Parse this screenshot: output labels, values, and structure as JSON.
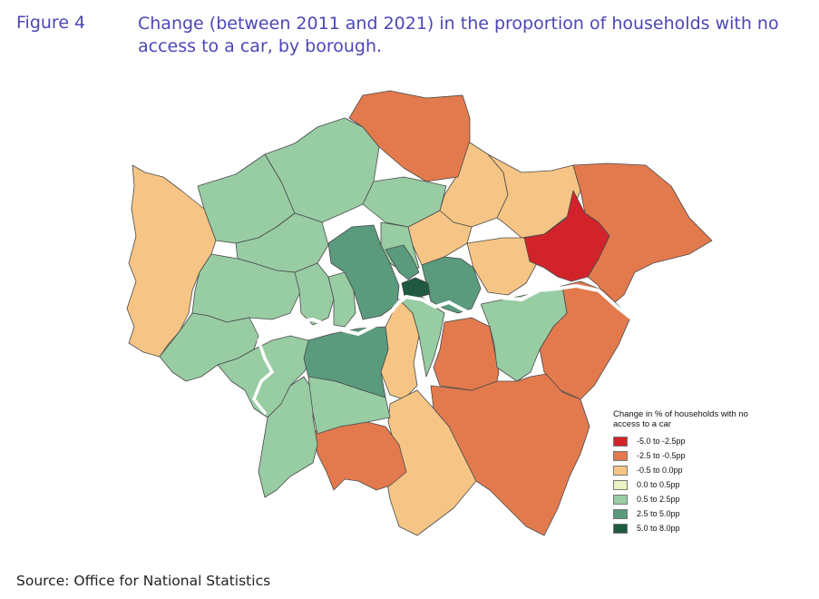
{
  "figure": {
    "label": "Figure 4",
    "title": "Change (between 2011 and 2021) in the proportion of households with no access to a car, by borough."
  },
  "legend": {
    "title": "Change in % of households with no access to a car",
    "items": [
      {
        "label": "-5.0 to -2.5pp",
        "color": "#d2232a"
      },
      {
        "label": "-2.5 to -0.5pp",
        "color": "#e27a4e"
      },
      {
        "label": "-0.5 to 0.0pp",
        "color": "#f6c585"
      },
      {
        "label": "0.0 to 0.5pp",
        "color": "#e9f3c3"
      },
      {
        "label": "0.5 to 2.5pp",
        "color": "#98cca3"
      },
      {
        "label": "2.5 to 5.0pp",
        "color": "#5a9a7d"
      },
      {
        "label": "5.0 to 8.0pp",
        "color": "#1f5a40"
      }
    ]
  },
  "source": "Source: Office for National Statistics"
}
